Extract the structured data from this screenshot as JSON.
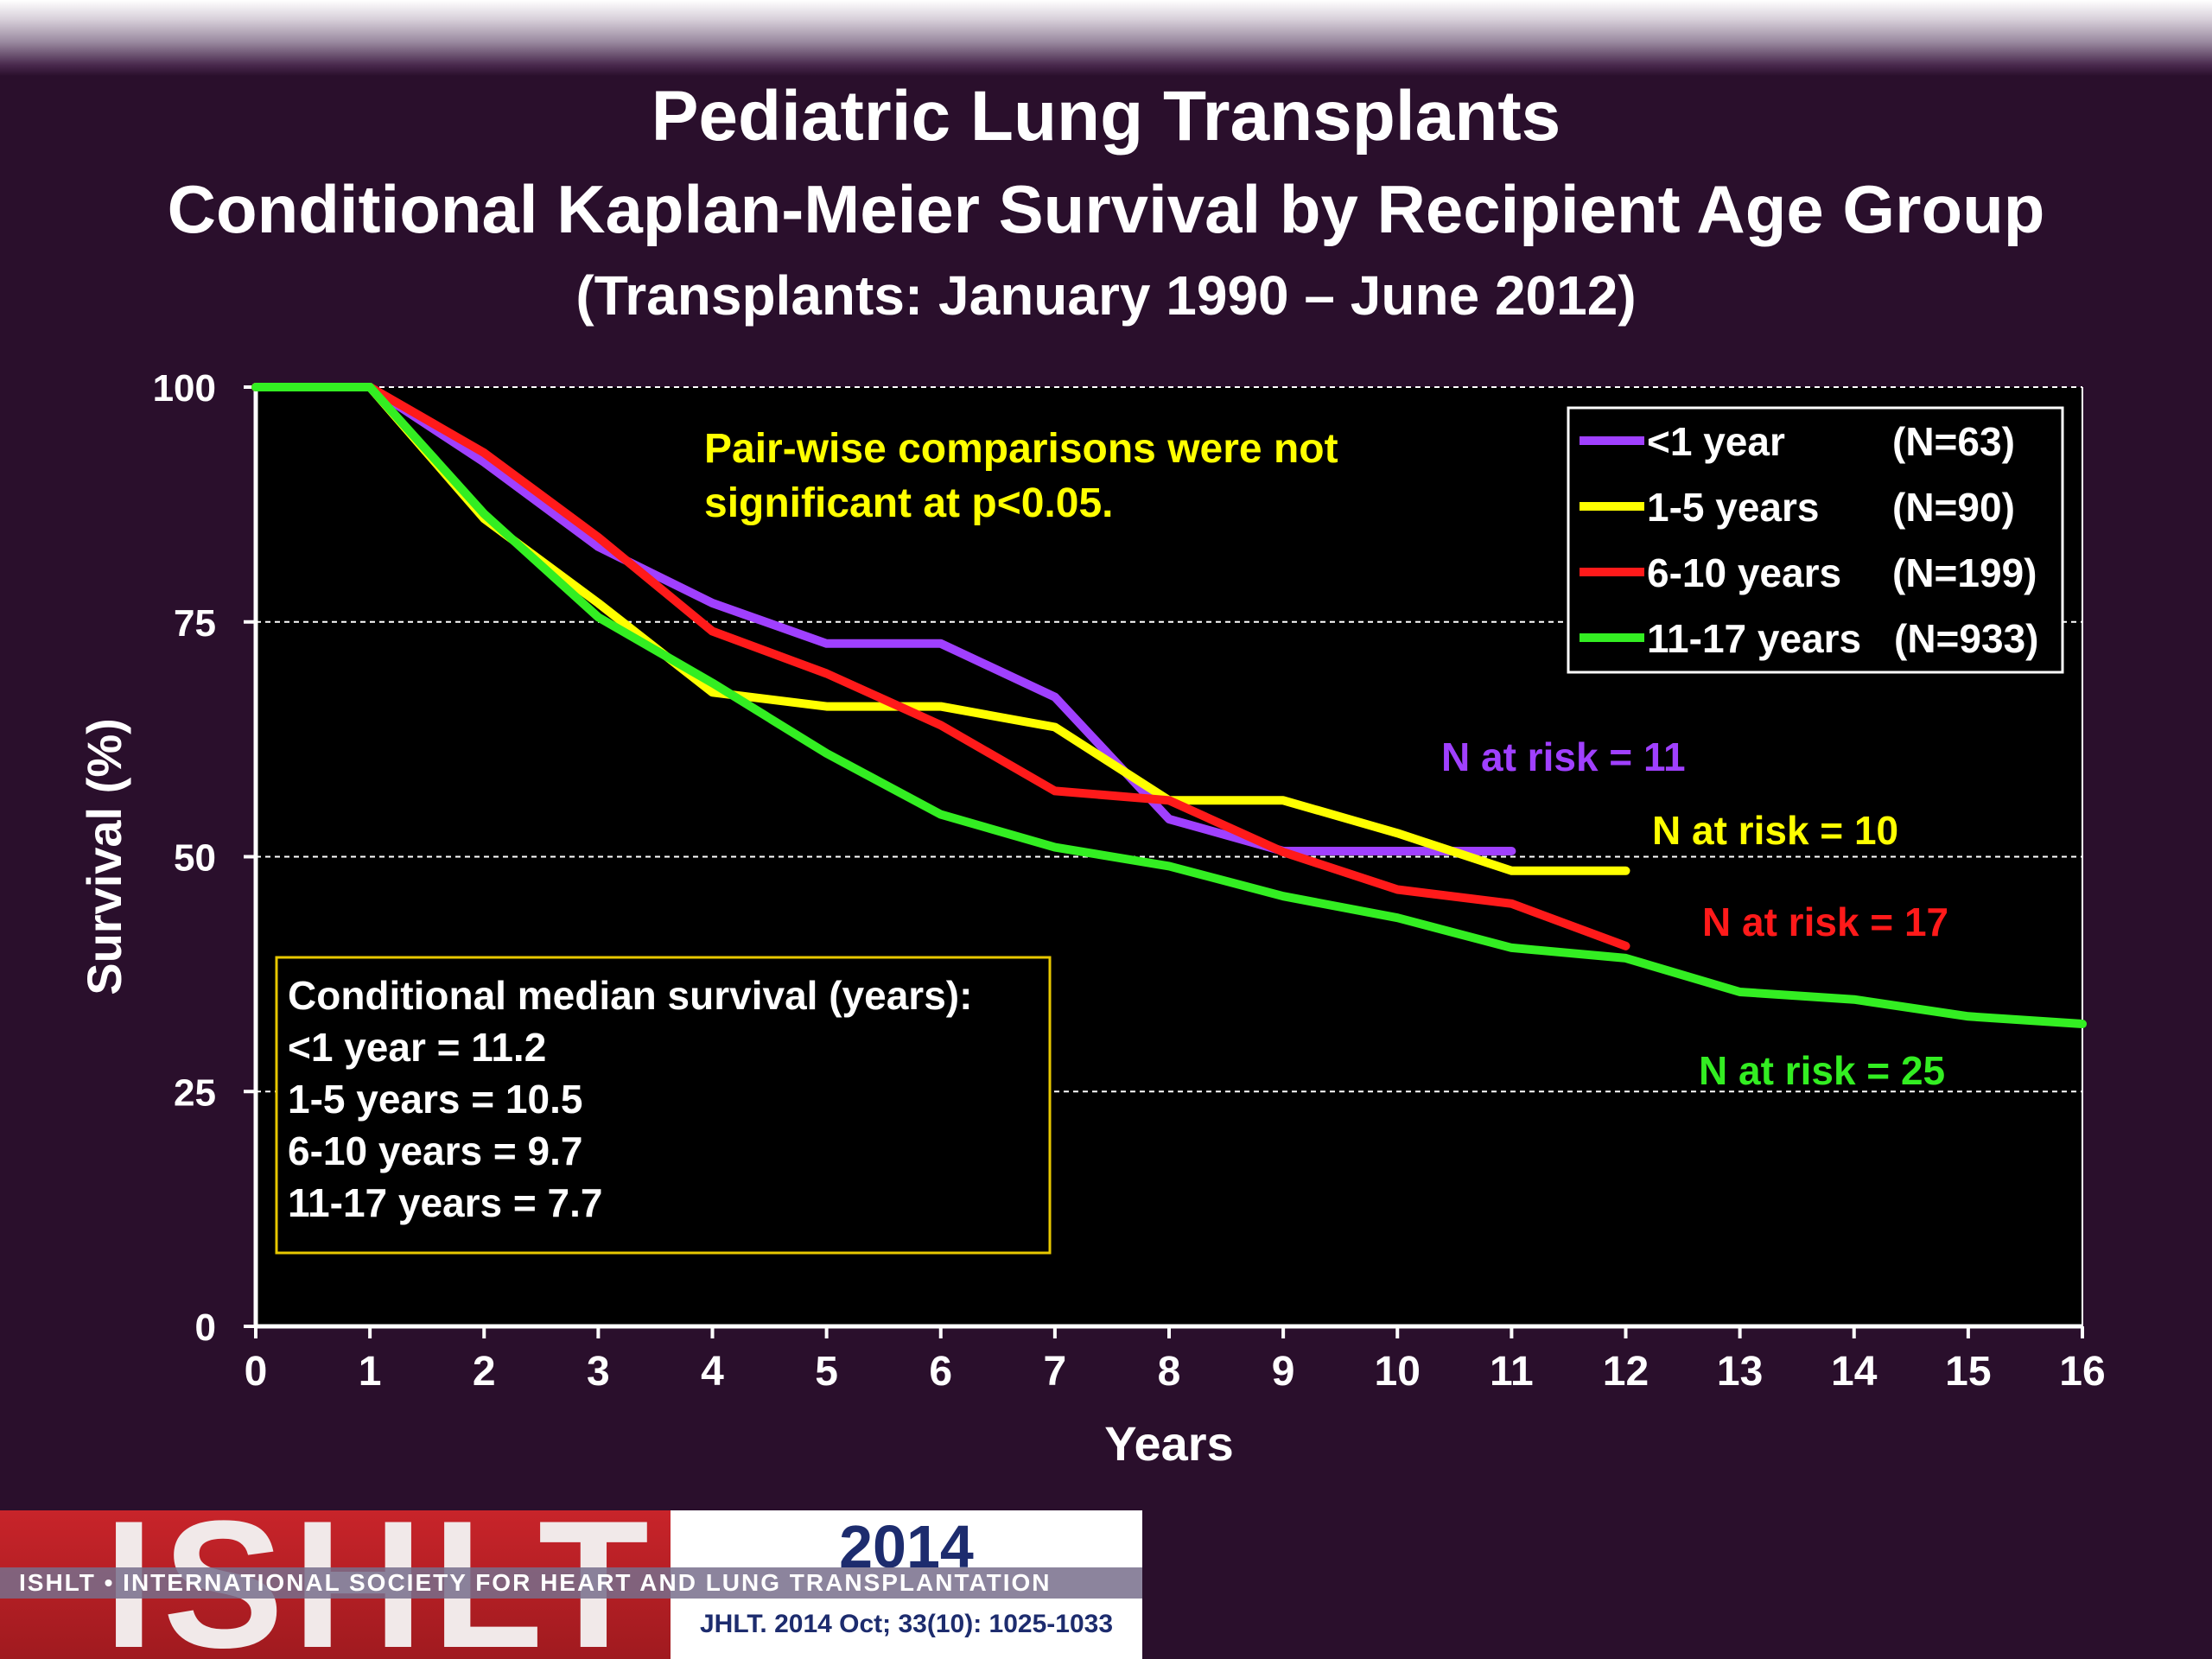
{
  "header": {
    "title": "Pediatric Lung Transplants",
    "subtitle": "Conditional Kaplan-Meier Survival by Recipient Age Group",
    "subtitle2": "(Transplants: January 1990 – June 2012)"
  },
  "colors": {
    "background": "#2a0f2c",
    "plot_bg": "#000000",
    "lt1": "#a040ff",
    "y1_5": "#ffff00",
    "y6_10": "#ff1a1a",
    "y11_17": "#33ee22",
    "annotation": "#ffff00"
  },
  "chart_data": {
    "type": "line",
    "xlabel": "Years",
    "ylabel": "Survival (%)",
    "xlim": [
      0,
      16
    ],
    "ylim": [
      0,
      100
    ],
    "xticks": [
      "0",
      "1",
      "2",
      "3",
      "4",
      "5",
      "6",
      "7",
      "8",
      "9",
      "10",
      "11",
      "12",
      "13",
      "14",
      "15",
      "16"
    ],
    "yticks": [
      "0",
      "25",
      "50",
      "75",
      "100"
    ],
    "grid": "horizontal dashed",
    "legend_position": "top-right",
    "series": [
      {
        "name": "<1 year",
        "n": "(N=63)",
        "color": "#a040ff",
        "x": [
          0,
          1,
          2,
          3,
          4,
          5,
          6,
          7,
          8,
          9,
          10,
          11
        ],
        "y": [
          100,
          100,
          92,
          83,
          77,
          72.7,
          72.7,
          67,
          54,
          50.6,
          50.6,
          50.6
        ]
      },
      {
        "name": "1-5 years",
        "n": "(N=90)",
        "color": "#ffff00",
        "x": [
          0,
          1,
          2,
          3,
          4,
          5,
          6,
          7,
          8,
          9,
          10,
          11,
          12
        ],
        "y": [
          100,
          100,
          86,
          77,
          67.5,
          66,
          66,
          63.8,
          56,
          56,
          52.5,
          48.5,
          48.5
        ]
      },
      {
        "name": "6-10 years",
        "n": "(N=199)",
        "color": "#ff1a1a",
        "x": [
          0,
          1,
          2,
          3,
          4,
          5,
          6,
          7,
          8,
          9,
          10,
          11,
          12
        ],
        "y": [
          100,
          100,
          93,
          84,
          74,
          69.5,
          64,
          57,
          56,
          50.5,
          46.5,
          45,
          40.5
        ]
      },
      {
        "name": "11-17 years",
        "n": "(N=933)",
        "color": "#33ee22",
        "x": [
          0,
          1,
          2,
          3,
          4,
          5,
          6,
          7,
          8,
          9,
          10,
          11,
          12,
          13,
          14,
          15,
          16
        ],
        "y": [
          100,
          100,
          86.5,
          75.5,
          68.5,
          61,
          54.5,
          51,
          49,
          45.8,
          43.5,
          40.3,
          39.2,
          35.6,
          34.8,
          33,
          32.2
        ]
      }
    ],
    "annotations": {
      "note": [
        "Pair-wise comparisons were not",
        "significant at p<0.05."
      ],
      "risk": [
        {
          "text": "N at risk = 11",
          "color": "#a040ff"
        },
        {
          "text": "N at risk =  10",
          "color": "#ffff00"
        },
        {
          "text": "N at risk = 17",
          "color": "#ff1a1a"
        },
        {
          "text": "N at risk = 25",
          "color": "#33ee22"
        }
      ],
      "median_box": [
        "Conditional median survival (years):",
        "<1 year = 11.2",
        "1-5 years = 10.5",
        "6-10 years = 9.7",
        "11-17 years = 7.7"
      ]
    }
  },
  "footer": {
    "logo_text": "ISHLT",
    "year": "2014",
    "society": "ISHLT • INTERNATIONAL SOCIETY FOR HEART AND LUNG TRANSPLANTATION",
    "citation": "JHLT. 2014 Oct; 33(10): 1025-1033"
  }
}
